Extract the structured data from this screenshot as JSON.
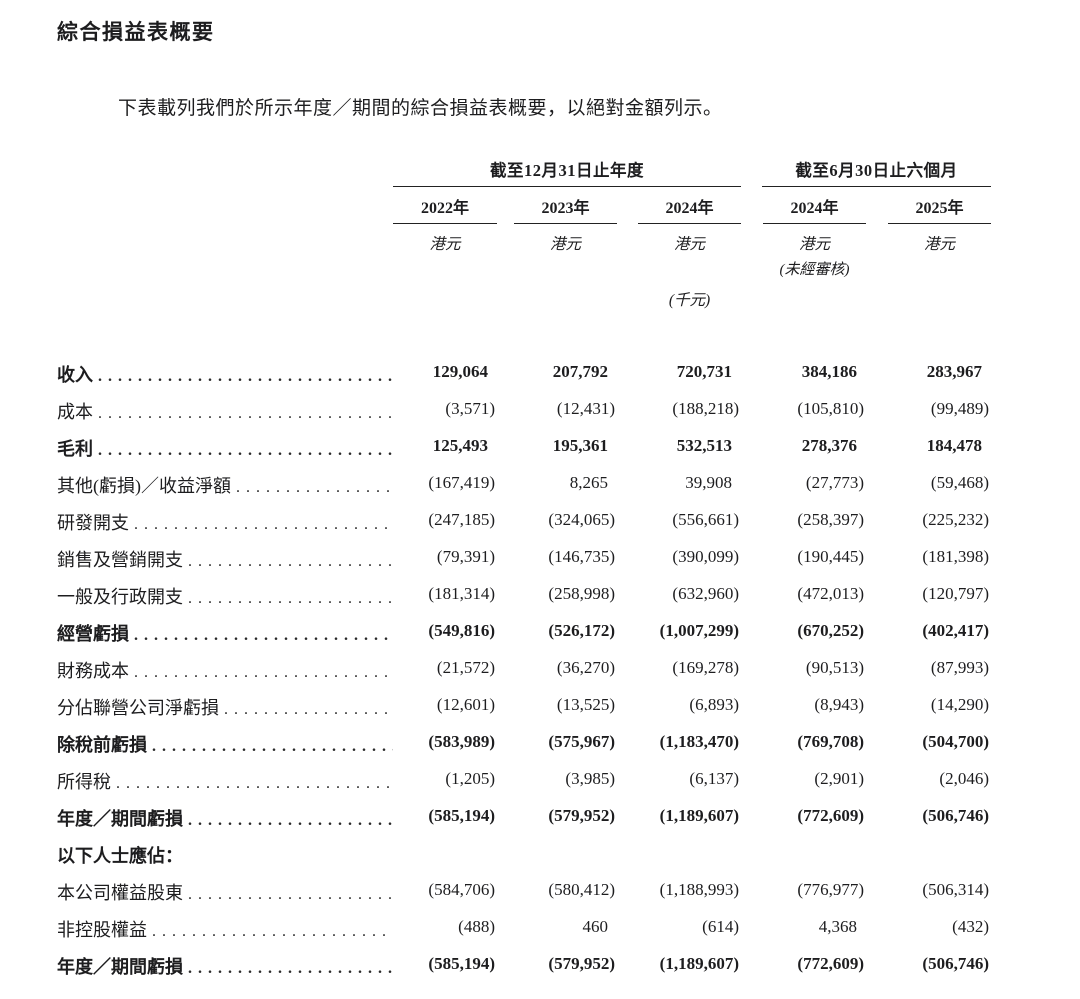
{
  "page": {
    "title": "綜合損益表概要",
    "intro": "下表載列我們於所示年度／期間的綜合損益表概要，以絕對金額列示。"
  },
  "table": {
    "column_groups": [
      {
        "label": "截至12月31日止年度",
        "span": 3
      },
      {
        "label": "截至6月30日止六個月",
        "span": 2
      }
    ],
    "columns": [
      {
        "year": "2022年",
        "currency": "港元",
        "note": ""
      },
      {
        "year": "2023年",
        "currency": "港元",
        "note": ""
      },
      {
        "year": "2024年",
        "currency": "港元",
        "note": ""
      },
      {
        "year": "2024年",
        "currency": "港元",
        "note": "(未經審核)"
      },
      {
        "year": "2025年",
        "currency": "港元",
        "note": ""
      }
    ],
    "unit_note": "(千元)",
    "rows": [
      {
        "label": "收入",
        "bold": true,
        "leader": true,
        "values": [
          "129,064",
          "207,792",
          "720,731",
          "384,186",
          "283,967"
        ]
      },
      {
        "label": "成本",
        "bold": false,
        "leader": true,
        "values": [
          "(3,571)",
          "(12,431)",
          "(188,218)",
          "(105,810)",
          "(99,489)"
        ]
      },
      {
        "label": "毛利",
        "bold": true,
        "leader": true,
        "values": [
          "125,493",
          "195,361",
          "532,513",
          "278,376",
          "184,478"
        ]
      },
      {
        "label": "其他(虧損)／收益淨額",
        "bold": false,
        "leader": true,
        "values": [
          "(167,419)",
          "8,265",
          "39,908",
          "(27,773)",
          "(59,468)"
        ]
      },
      {
        "label": "研發開支",
        "bold": false,
        "leader": true,
        "values": [
          "(247,185)",
          "(324,065)",
          "(556,661)",
          "(258,397)",
          "(225,232)"
        ]
      },
      {
        "label": "銷售及營銷開支",
        "bold": false,
        "leader": true,
        "values": [
          "(79,391)",
          "(146,735)",
          "(390,099)",
          "(190,445)",
          "(181,398)"
        ]
      },
      {
        "label": "一般及行政開支",
        "bold": false,
        "leader": true,
        "values": [
          "(181,314)",
          "(258,998)",
          "(632,960)",
          "(472,013)",
          "(120,797)"
        ]
      },
      {
        "label": "經營虧損",
        "bold": true,
        "leader": true,
        "values": [
          "(549,816)",
          "(526,172)",
          "(1,007,299)",
          "(670,252)",
          "(402,417)"
        ]
      },
      {
        "label": "財務成本",
        "bold": false,
        "leader": true,
        "values": [
          "(21,572)",
          "(36,270)",
          "(169,278)",
          "(90,513)",
          "(87,993)"
        ]
      },
      {
        "label": "分佔聯營公司淨虧損",
        "bold": false,
        "leader": true,
        "values": [
          "(12,601)",
          "(13,525)",
          "(6,893)",
          "(8,943)",
          "(14,290)"
        ]
      },
      {
        "label": "除稅前虧損",
        "bold": true,
        "leader": true,
        "values": [
          "(583,989)",
          "(575,967)",
          "(1,183,470)",
          "(769,708)",
          "(504,700)"
        ]
      },
      {
        "label": "所得稅",
        "bold": false,
        "leader": true,
        "values": [
          "(1,205)",
          "(3,985)",
          "(6,137)",
          "(2,901)",
          "(2,046)"
        ]
      },
      {
        "label": "年度／期間虧損",
        "bold": true,
        "leader": true,
        "values": [
          "(585,194)",
          "(579,952)",
          "(1,189,607)",
          "(772,609)",
          "(506,746)"
        ]
      },
      {
        "label": "以下人士應佔：",
        "bold": true,
        "leader": false,
        "values": [
          "",
          "",
          "",
          "",
          ""
        ]
      },
      {
        "label": "本公司權益股東",
        "bold": false,
        "leader": true,
        "values": [
          "(584,706)",
          "(580,412)",
          "(1,188,993)",
          "(776,977)",
          "(506,314)"
        ]
      },
      {
        "label": "非控股權益",
        "bold": false,
        "leader": true,
        "values": [
          "(488)",
          "460",
          "(614)",
          "4,368",
          "(432)"
        ]
      },
      {
        "label": "年度／期間虧損",
        "bold": true,
        "leader": true,
        "values": [
          "(585,194)",
          "(579,952)",
          "(1,189,607)",
          "(772,609)",
          "(506,746)"
        ]
      }
    ]
  }
}
